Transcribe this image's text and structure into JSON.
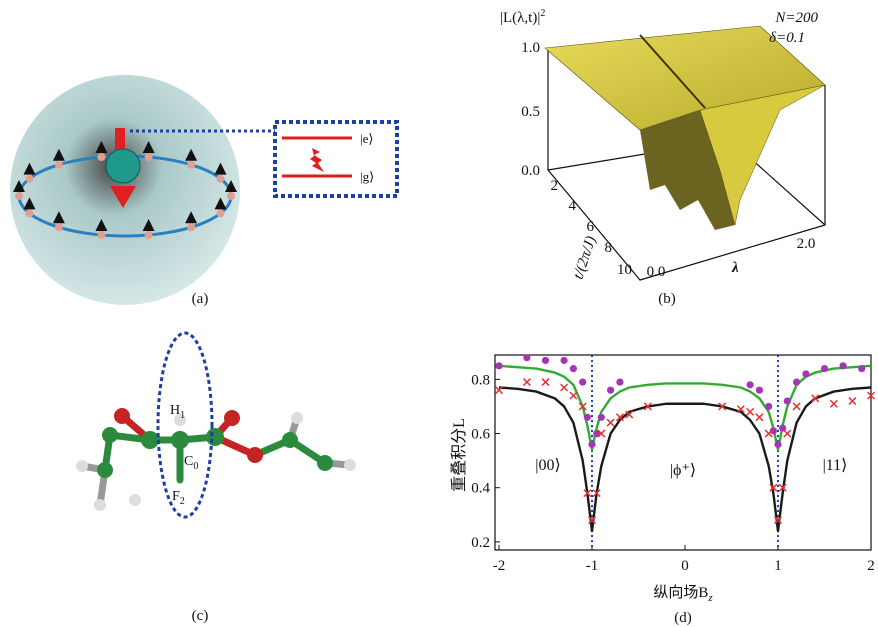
{
  "figure": {
    "panel_labels": [
      "(a)",
      "(b)",
      "(c)",
      "(d)"
    ],
    "a": {
      "levels": [
        "|e⟩",
        "|g⟩"
      ]
    },
    "b": {
      "zlabel": "|L(λ,t)|",
      "zlabel_sup": "2",
      "params": [
        "N=200",
        "δ=0.1"
      ],
      "zticks": [
        "1.0",
        "0.5",
        "0.0"
      ],
      "tticks": [
        "2",
        "4",
        "6",
        "8",
        "10"
      ],
      "tlabel": "t/(2π/J)",
      "lticks": [
        "0.0",
        "2.0"
      ],
      "llabel": "λ"
    },
    "c": {
      "atoms": [
        {
          "text": "H",
          "sub": "1"
        },
        {
          "text": "C",
          "sub": "0"
        },
        {
          "text": "F",
          "sub": "2"
        }
      ]
    }
  },
  "chart_data": {
    "type": "line",
    "xlabel": {
      "text": "纵向场B",
      "sub": "z"
    },
    "ylabel": "重叠积分L",
    "annotations": [
      "|00⟩",
      "|ϕ⁺⟩",
      "|11⟩"
    ],
    "xlim": [
      -2,
      2
    ],
    "ylim": [
      0.17,
      0.89
    ],
    "xticks": [
      -2,
      -1,
      0,
      1,
      2
    ],
    "yticks": [
      0.2,
      0.4,
      0.6,
      0.8
    ],
    "vlines": [
      -1,
      1
    ],
    "x": [
      -2,
      -1.8,
      -1.6,
      -1.4,
      -1.3,
      -1.2,
      -1.1,
      -1.05,
      -1,
      -0.95,
      -0.9,
      -0.8,
      -0.7,
      -0.6,
      -0.4,
      -0.2,
      0,
      0.2,
      0.4,
      0.6,
      0.7,
      0.8,
      0.9,
      0.95,
      1,
      1.05,
      1.1,
      1.2,
      1.3,
      1.4,
      1.6,
      1.8,
      2
    ],
    "series": [
      {
        "color": "#1a1a1a",
        "values": [
          0.77,
          0.765,
          0.755,
          0.73,
          0.7,
          0.64,
          0.5,
          0.38,
          0.24,
          0.38,
          0.48,
          0.6,
          0.65,
          0.68,
          0.7,
          0.71,
          0.71,
          0.71,
          0.7,
          0.68,
          0.65,
          0.6,
          0.48,
          0.38,
          0.24,
          0.38,
          0.5,
          0.64,
          0.7,
          0.73,
          0.755,
          0.765,
          0.77
        ]
      },
      {
        "color": "#33aa33",
        "values": [
          0.85,
          0.845,
          0.84,
          0.825,
          0.81,
          0.78,
          0.7,
          0.63,
          0.54,
          0.62,
          0.68,
          0.73,
          0.755,
          0.77,
          0.78,
          0.785,
          0.785,
          0.785,
          0.78,
          0.77,
          0.755,
          0.73,
          0.68,
          0.62,
          0.54,
          0.63,
          0.7,
          0.78,
          0.81,
          0.825,
          0.84,
          0.845,
          0.85
        ]
      },
      {
        "color": "#a535b5",
        "marker": "dot",
        "x": [
          -2,
          -1.7,
          -1.5,
          -1.3,
          -1.2,
          -1.1,
          -1.05,
          -1,
          -0.95,
          -0.9,
          -0.8,
          -0.7,
          0.7,
          0.8,
          0.9,
          0.95,
          1,
          1.05,
          1.1,
          1.2,
          1.3,
          1.5,
          1.7,
          1.9
        ],
        "values": [
          0.85,
          0.88,
          0.87,
          0.87,
          0.84,
          0.79,
          0.66,
          0.56,
          0.6,
          0.66,
          0.76,
          0.79,
          0.78,
          0.76,
          0.7,
          0.61,
          0.56,
          0.62,
          0.72,
          0.79,
          0.82,
          0.84,
          0.85,
          0.84
        ]
      },
      {
        "color": "#e53333",
        "marker": "cross",
        "x": [
          -2,
          -1.7,
          -1.5,
          -1.3,
          -1.2,
          -1.1,
          -1.05,
          -1,
          -0.95,
          -0.9,
          -0.8,
          -0.7,
          -0.6,
          -0.4,
          0.4,
          0.6,
          0.7,
          0.8,
          0.9,
          0.95,
          1,
          1.05,
          1.1,
          1.2,
          1.4,
          1.6,
          1.8,
          2
        ],
        "values": [
          0.76,
          0.79,
          0.79,
          0.77,
          0.74,
          0.7,
          0.38,
          0.28,
          0.38,
          0.6,
          0.64,
          0.66,
          0.67,
          0.7,
          0.7,
          0.69,
          0.68,
          0.66,
          0.6,
          0.4,
          0.28,
          0.4,
          0.6,
          0.7,
          0.73,
          0.71,
          0.72,
          0.74
        ]
      }
    ]
  }
}
